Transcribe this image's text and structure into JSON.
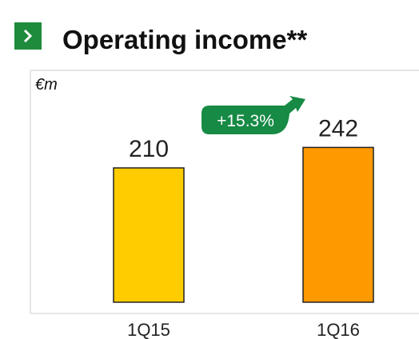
{
  "chart_data": {
    "type": "bar",
    "title": "Operating income**",
    "unit_label": "€m",
    "annotation": "+15.3%",
    "categories": [
      "1Q15",
      "1Q16"
    ],
    "values": [
      210,
      242
    ],
    "colors": [
      "#ffcc00",
      "#ff9900"
    ]
  }
}
